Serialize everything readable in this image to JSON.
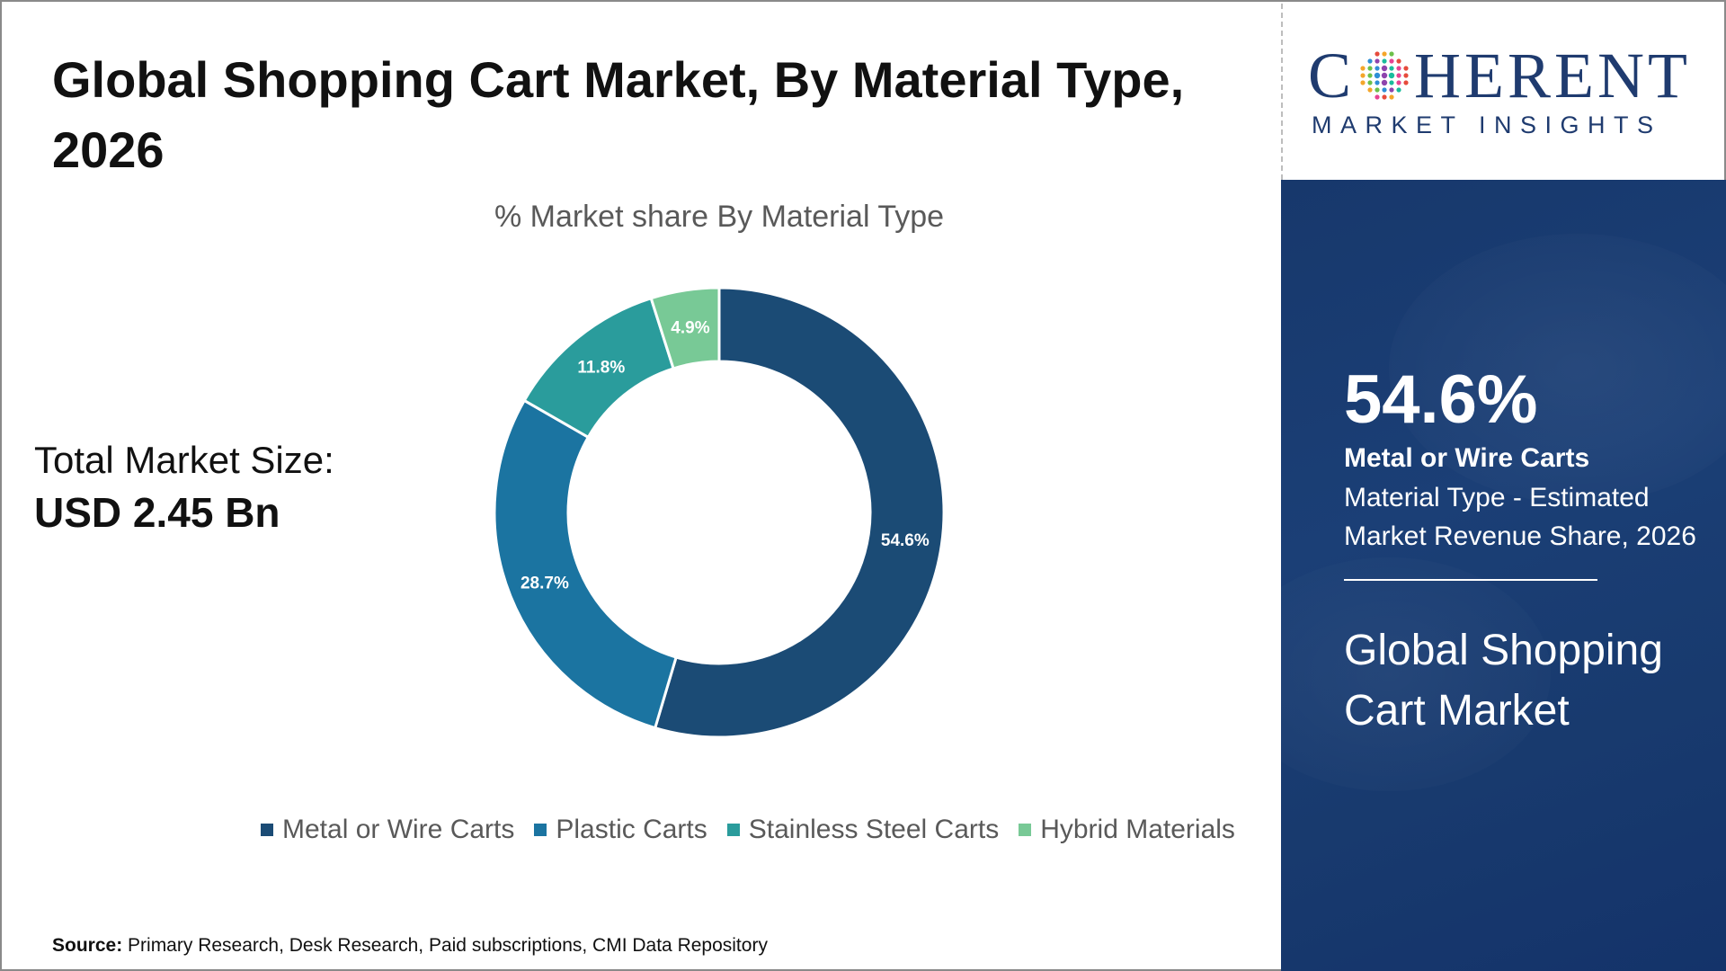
{
  "title": "Global Shopping Cart Market, By Material Type, 2026",
  "chart_data": {
    "type": "pie",
    "title": "% Market share By Material Type",
    "donut": true,
    "categories": [
      "Metal or Wire Carts",
      "Plastic Carts",
      "Stainless Steel Carts",
      "Hybrid Materials"
    ],
    "values": [
      54.6,
      28.7,
      11.8,
      4.9
    ],
    "labels": [
      "54.6%",
      "28.7%",
      "11.8%",
      "4.9%"
    ],
    "colors": [
      "#1b4b75",
      "#1b74a1",
      "#2a9c9c",
      "#78c996"
    ],
    "legend_position": "bottom"
  },
  "market_size": {
    "label": "Total Market Size:",
    "value": "USD 2.45 Bn"
  },
  "source": {
    "prefix": "Source:",
    "text": " Primary Research, Desk Research, Paid subscriptions, CMI Data Repository"
  },
  "logo": {
    "before_o": "C",
    "after_o": "HERENT",
    "tagline": "MARKET INSIGHTS",
    "icon": "dotted-globe-icon"
  },
  "highlight": {
    "percent": "54.6%",
    "segment": "Metal or Wire Carts",
    "description": "Material Type - Estimated Market Revenue Share, 2026",
    "market_name": "Global Shopping Cart Market"
  },
  "colors": {
    "brand_navy": "#1f3b6f",
    "panel_bg": "#18396e"
  }
}
